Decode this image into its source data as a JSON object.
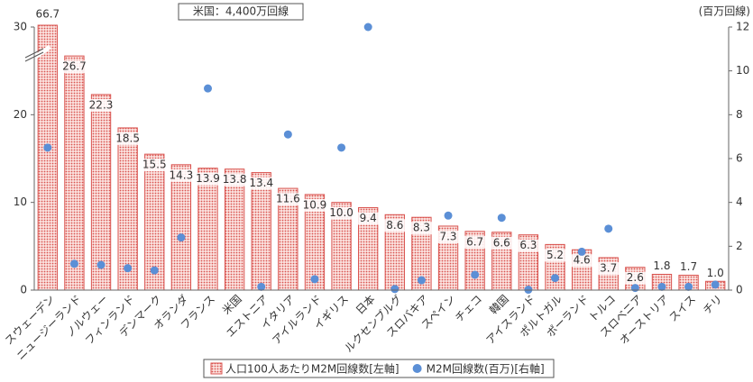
{
  "chart_data": {
    "type": "bar",
    "categories": [
      "スウェーデン",
      "ニュージーランド",
      "ノルウェー",
      "フィンランド",
      "デンマーク",
      "オランダ",
      "フランス",
      "米国",
      "エストニア",
      "イタリア",
      "アイルランド",
      "イギリス",
      "日本",
      "ルクセンブルグ",
      "スロバキア",
      "スペイン",
      "チェコ",
      "韓国",
      "アイスランド",
      "ポルトガル",
      "ポーランド",
      "トルコ",
      "スロベニア",
      "オーストリア",
      "スイス",
      "チリ"
    ],
    "series": [
      {
        "name": "人口100人あたりM2M回線数[左軸]",
        "type": "bar",
        "color": "#d9534f",
        "values": [
          66.7,
          26.7,
          22.3,
          18.5,
          15.5,
          14.3,
          13.9,
          13.8,
          13.4,
          11.6,
          10.9,
          10.0,
          9.4,
          8.6,
          8.3,
          7.3,
          6.7,
          6.6,
          6.3,
          5.2,
          4.6,
          3.7,
          2.6,
          1.8,
          1.7,
          1.0
        ],
        "value_labels": [
          "66.7",
          "26.7",
          "22.3",
          "18.5",
          "15.5",
          "14.3",
          "13.9",
          "13.8",
          "13.4",
          "11.6",
          "10.9",
          "10.0",
          "9.4",
          "8.6",
          "8.3",
          "7.3",
          "6.7",
          "6.6",
          "6.3",
          "5.2",
          "4.6",
          "3.7",
          "2.6",
          "1.8",
          "1.7",
          "1.0"
        ]
      },
      {
        "name": "M2M回線数(百万)[右軸]",
        "type": "scatter",
        "axis": "y2",
        "color": "#5b8fd6",
        "values": [
          6.5,
          1.2,
          1.15,
          1.0,
          0.9,
          2.4,
          9.2,
          null,
          0.15,
          7.1,
          0.5,
          6.5,
          12.0,
          0.05,
          0.45,
          3.4,
          0.7,
          3.3,
          0.02,
          0.55,
          1.75,
          2.8,
          0.1,
          0.15,
          0.15,
          0.25
        ]
      }
    ],
    "annotation": "米国：4,400万回線",
    "y2_label": "(百万回線)",
    "ylim": [
      0,
      30
    ],
    "yticks": [
      0,
      10,
      20,
      30
    ],
    "y2lim": [
      0,
      12
    ],
    "y2ticks": [
      0,
      2,
      4,
      6,
      8,
      10,
      12
    ],
    "legend": "bottom"
  }
}
